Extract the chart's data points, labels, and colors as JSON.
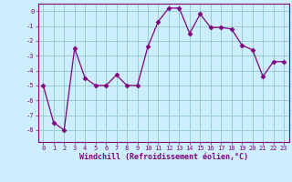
{
  "x": [
    0,
    1,
    2,
    3,
    4,
    5,
    6,
    7,
    8,
    9,
    10,
    11,
    12,
    13,
    14,
    15,
    16,
    17,
    18,
    19,
    20,
    21,
    22,
    23
  ],
  "y": [
    -5,
    -7.5,
    -8,
    -2.5,
    -4.5,
    -5,
    -5,
    -4.3,
    -5,
    -5,
    -2.4,
    -0.7,
    0.2,
    0.2,
    -1.5,
    -0.2,
    -1.1,
    -1.1,
    -1.2,
    -2.3,
    -2.6,
    -4.4,
    -3.4,
    -3.4
  ],
  "line_color": "#800080",
  "marker": "D",
  "marker_size": 2.5,
  "bg_color": "#cceeff",
  "grid_color": "#99cccc",
  "xlabel": "Windchill (Refroidissement éolien,°C)",
  "xlabel_color": "#800080",
  "tick_color": "#800080",
  "xlim": [
    -0.5,
    23.5
  ],
  "ylim": [
    -8.8,
    0.5
  ],
  "yticks": [
    0,
    -1,
    -2,
    -3,
    -4,
    -5,
    -6,
    -7,
    -8
  ],
  "xticks": [
    0,
    1,
    2,
    3,
    4,
    5,
    6,
    7,
    8,
    9,
    10,
    11,
    12,
    13,
    14,
    15,
    16,
    17,
    18,
    19,
    20,
    21,
    22,
    23
  ]
}
